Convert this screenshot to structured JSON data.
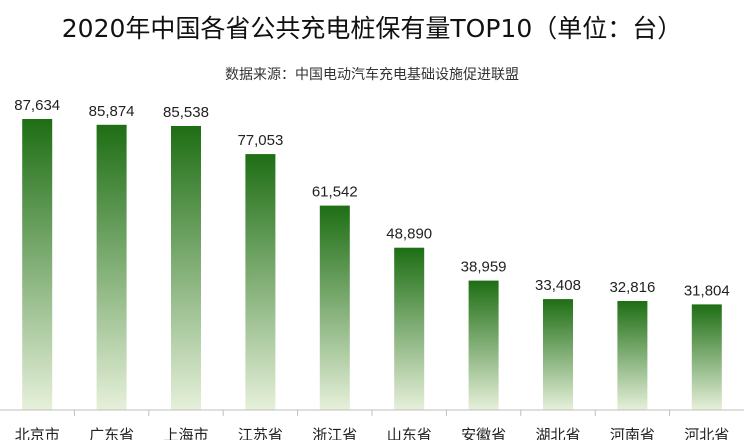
{
  "chart_data": {
    "type": "bar",
    "title": "2020年中国各省公共充电桩保有量TOP10（单位：台）",
    "subtitle": "数据来源：中国电动汽车充电基础设施促进联盟",
    "categories": [
      "北京市",
      "广东省",
      "上海市",
      "江苏省",
      "浙江省",
      "山东省",
      "安徽省",
      "湖北省",
      "河南省",
      "河北省"
    ],
    "values": [
      87634,
      85874,
      85538,
      77053,
      61542,
      48890,
      38959,
      33408,
      32816,
      31804
    ],
    "value_labels": [
      "87,634",
      "85,874",
      "85,538",
      "77,053",
      "61,542",
      "48,890",
      "38,959",
      "33,408",
      "32,816",
      "31,804"
    ],
    "bar_color_top": "#1e6e14",
    "bar_color_bottom": "#e6f0da",
    "grid": false,
    "legend": "none"
  }
}
